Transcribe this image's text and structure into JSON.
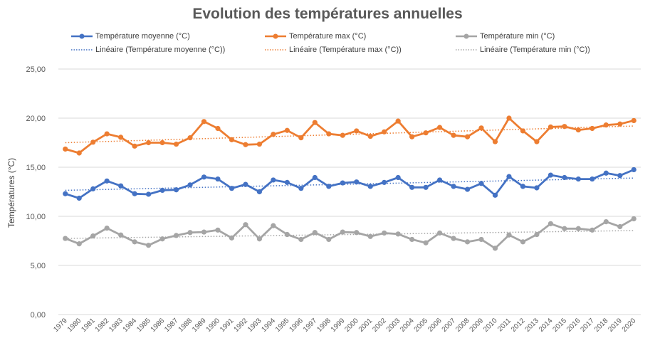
{
  "chart_data": {
    "type": "line",
    "title": "Evolution des températures annuelles",
    "xlabel": "",
    "ylabel": "Températures (°C)",
    "ylim": [
      0,
      25
    ],
    "yticks": [
      "0,00",
      "5,00",
      "10,00",
      "15,00",
      "20,00",
      "25,00"
    ],
    "categories": [
      "1979",
      "1980",
      "1981",
      "1982",
      "1983",
      "1984",
      "1985",
      "1986",
      "1987",
      "1988",
      "1989",
      "1990",
      "1991",
      "1992",
      "1993",
      "1994",
      "1995",
      "1996",
      "1997",
      "1998",
      "1999",
      "2000",
      "2001",
      "2002",
      "2003",
      "2004",
      "2005",
      "2006",
      "2007",
      "2008",
      "2009",
      "2010",
      "2011",
      "2012",
      "2013",
      "2014",
      "2015",
      "2016",
      "2017",
      "2018",
      "2019",
      "2020"
    ],
    "series": [
      {
        "name": "Température moyenne (°C)",
        "color": "#4472C4",
        "values": [
          12.3,
          11.85,
          12.8,
          13.6,
          13.1,
          12.3,
          12.25,
          12.65,
          12.7,
          13.2,
          14.0,
          13.8,
          12.85,
          13.25,
          12.5,
          13.7,
          13.45,
          12.85,
          13.95,
          13.05,
          13.4,
          13.5,
          13.05,
          13.45,
          13.95,
          12.95,
          12.95,
          13.7,
          13.05,
          12.75,
          13.35,
          12.15,
          14.05,
          13.05,
          12.9,
          14.2,
          13.95,
          13.8,
          13.8,
          14.4,
          14.15,
          14.75
        ]
      },
      {
        "name": "Température max (°C)",
        "color": "#ED7D31",
        "values": [
          16.85,
          16.45,
          17.55,
          18.4,
          18.05,
          17.15,
          17.5,
          17.5,
          17.35,
          18.0,
          19.65,
          18.95,
          17.8,
          17.3,
          17.35,
          18.35,
          18.75,
          18.0,
          19.55,
          18.4,
          18.25,
          18.7,
          18.15,
          18.6,
          19.7,
          18.1,
          18.5,
          19.05,
          18.25,
          18.1,
          19.0,
          17.6,
          20.0,
          18.7,
          17.6,
          19.1,
          19.15,
          18.8,
          18.95,
          19.3,
          19.4,
          19.75
        ]
      },
      {
        "name": "Température min (°C)",
        "color": "#A5A5A5",
        "values": [
          7.75,
          7.2,
          8.0,
          8.8,
          8.1,
          7.4,
          7.05,
          7.7,
          8.05,
          8.35,
          8.4,
          8.6,
          7.8,
          9.15,
          7.7,
          9.05,
          8.15,
          7.65,
          8.35,
          7.65,
          8.4,
          8.35,
          7.95,
          8.3,
          8.2,
          7.65,
          7.3,
          8.3,
          7.75,
          7.4,
          7.65,
          6.75,
          8.1,
          7.4,
          8.15,
          9.25,
          8.75,
          8.75,
          8.6,
          9.45,
          8.95,
          9.75
        ]
      }
    ],
    "trendlines": [
      {
        "name": "Linéaire (Température moyenne (°C))",
        "color": "#4472C4",
        "start": 12.65,
        "end": 13.9
      },
      {
        "name": "Linéaire (Température max (°C))",
        "color": "#ED7D31",
        "start": 17.5,
        "end": 19.2
      },
      {
        "name": "Linéaire (Température min (°C))",
        "color": "#A5A5A5",
        "start": 7.75,
        "end": 8.55
      }
    ],
    "grid": true,
    "legend": "top"
  }
}
